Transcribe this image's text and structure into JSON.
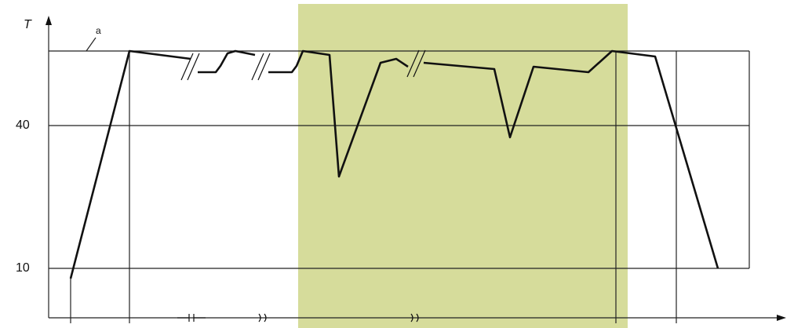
{
  "axis": {
    "y_label": "T"
  },
  "annotation": "a",
  "ticks": [
    "40",
    "10"
  ]
}
